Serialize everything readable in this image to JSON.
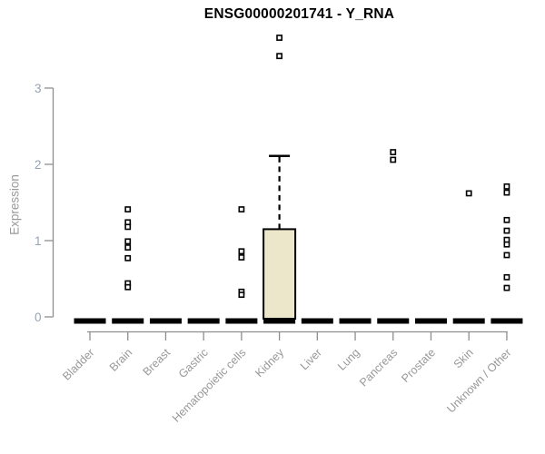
{
  "title": "ENSG00000201741 - Y_RNA",
  "colors": {
    "background": "#ffffff",
    "title": "#000000",
    "axis": "#8e8e8e",
    "tick_label": "#95a3b4",
    "category_label": "#989898",
    "axis_title": "#9a9a9a",
    "box_fill": "#ece7cb",
    "box_border": "#000000",
    "median_bar": "#000000",
    "outlier_fill": "#ffffff",
    "outlier_border": "#000000"
  },
  "chart_data": {
    "type": "boxplot",
    "title": "ENSG00000201741 - Y_RNA",
    "xlabel": "",
    "ylabel": "Expression",
    "yticks": [
      0,
      1,
      2,
      3
    ],
    "ylim": [
      0,
      3.7
    ],
    "grid": false,
    "categories": [
      "Bladder",
      "Brain",
      "Breast",
      "Gastric",
      "Hematopoietic cells",
      "Kidney",
      "Liver",
      "Lung",
      "Pancreas",
      "Prostate",
      "Skin",
      "Unknown / Other"
    ],
    "series": [
      {
        "name": "Bladder",
        "median": 0,
        "q1": 0,
        "q3": 0,
        "whisker_low": 0,
        "whisker_high": 0,
        "outliers": []
      },
      {
        "name": "Brain",
        "median": 0,
        "q1": 0,
        "q3": 0,
        "whisker_low": 0,
        "whisker_high": 0,
        "outliers": [
          1.41,
          1.24,
          1.18,
          0.99,
          0.91,
          0.77,
          0.44,
          0.39
        ]
      },
      {
        "name": "Breast",
        "median": 0,
        "q1": 0,
        "q3": 0,
        "whisker_low": 0,
        "whisker_high": 0,
        "outliers": []
      },
      {
        "name": "Gastric",
        "median": 0,
        "q1": 0,
        "q3": 0,
        "whisker_low": 0,
        "whisker_high": 0,
        "outliers": []
      },
      {
        "name": "Hematopoietic cells",
        "median": 0,
        "q1": 0,
        "q3": 0,
        "whisker_low": 0,
        "whisker_high": 0,
        "outliers": [
          1.41,
          0.86,
          0.78,
          0.33,
          0.29
        ]
      },
      {
        "name": "Kidney",
        "median": 0,
        "q1": 0,
        "q3": 1.15,
        "whisker_low": 0,
        "whisker_high": 2.11,
        "outliers": [
          3.66,
          3.42
        ]
      },
      {
        "name": "Liver",
        "median": 0,
        "q1": 0,
        "q3": 0,
        "whisker_low": 0,
        "whisker_high": 0,
        "outliers": []
      },
      {
        "name": "Lung",
        "median": 0,
        "q1": 0,
        "q3": 0,
        "whisker_low": 0,
        "whisker_high": 0,
        "outliers": []
      },
      {
        "name": "Pancreas",
        "median": 0,
        "q1": 0,
        "q3": 0,
        "whisker_low": 0,
        "whisker_high": 0,
        "outliers": [
          2.16,
          2.06
        ]
      },
      {
        "name": "Prostate",
        "median": 0,
        "q1": 0,
        "q3": 0,
        "whisker_low": 0,
        "whisker_high": 0,
        "outliers": []
      },
      {
        "name": "Skin",
        "median": 0,
        "q1": 0,
        "q3": 0,
        "whisker_low": 0,
        "whisker_high": 0,
        "outliers": [
          1.62
        ]
      },
      {
        "name": "Unknown / Other",
        "median": 0,
        "q1": 0,
        "q3": 0,
        "whisker_low": 0,
        "whisker_high": 0,
        "outliers": [
          1.71,
          1.63,
          1.27,
          1.13,
          1.01,
          0.95,
          0.81,
          0.52,
          0.38
        ]
      }
    ]
  }
}
